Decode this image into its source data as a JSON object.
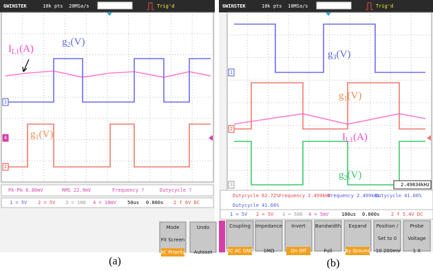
{
  "panels": [
    {
      "brand": "GWINSTEK",
      "points": "10k pts",
      "rate": "20MSa/s",
      "trigger": "Trig'd",
      "waveform_labels": [
        {
          "main": "I",
          "sub": "L1",
          "unit": "(A)"
        },
        {
          "main": "g",
          "sub": "2",
          "unit": "(V)"
        },
        {
          "main": "g",
          "sub": "1",
          "unit": "(V)"
        }
      ],
      "channel_markers": [
        "1",
        "4",
        "2"
      ],
      "measurements": [
        "Pk-Pk 6.80mV",
        "RMS 22.9mV",
        "Frequency ?",
        "Dutycycle ?"
      ],
      "channels": [
        "1 = 5V",
        "2 = 5V",
        "3 = 100",
        "4 = 10mV"
      ],
      "timebase": "50us",
      "position": "0.000s",
      "trigger_setting": "2 f 6V DC",
      "softkeys": [
        {
          "lines": [
            "Mode",
            "Fit Screen",
            "AC Priority"
          ],
          "highlight": 2
        },
        {
          "lines": [
            "Undo",
            "Autoset"
          ]
        }
      ]
    },
    {
      "brand": "GWINSTEK",
      "points": "10k pts",
      "rate": "10MSa/s",
      "trigger": "Trig'd",
      "waveform_labels": [
        {
          "main": "g",
          "sub": "3",
          "unit": "(V)"
        },
        {
          "main": "g",
          "sub": "1",
          "unit": "(V)"
        },
        {
          "main": "I",
          "sub": "L1",
          "unit": "(A)"
        },
        {
          "main": "g",
          "sub": "2",
          "unit": "(V)"
        }
      ],
      "channel_markers": [
        "1",
        "2",
        "3"
      ],
      "counter": "2.49834kHz",
      "measurements": [
        "Dutycycle 62.72%",
        "Frequency 2.499kHz",
        "Frequency 2.499kHz",
        "Dutycycle 41.66%",
        "Dutycycle 41.66%"
      ],
      "channels": [
        "1 = 5V",
        "2 = 5V",
        "3 = 500",
        "4 = 5mV"
      ],
      "timebase": "100us",
      "position": "0.000s",
      "trigger_setting": "2 f 5.4V DC",
      "softkeys": [
        {
          "lines": [
            "Coupling",
            "DC AC GND"
          ],
          "highlight": 1
        },
        {
          "lines": [
            "Impedance",
            "1MΩ"
          ]
        },
        {
          "lines": [
            "Invert",
            "On Off"
          ],
          "highlight": 1
        },
        {
          "lines": [
            "Bandwidth",
            "Full"
          ]
        },
        {
          "lines": [
            "Expand",
            "By Ground"
          ],
          "highlight": 1
        },
        {
          "lines": [
            "Position /",
            "Set to 0",
            "-10.200mV"
          ]
        },
        {
          "lines": [
            "Probe",
            "Voltage",
            "1 X"
          ]
        }
      ]
    }
  ],
  "captions": [
    "(a)",
    "(b)"
  ]
}
